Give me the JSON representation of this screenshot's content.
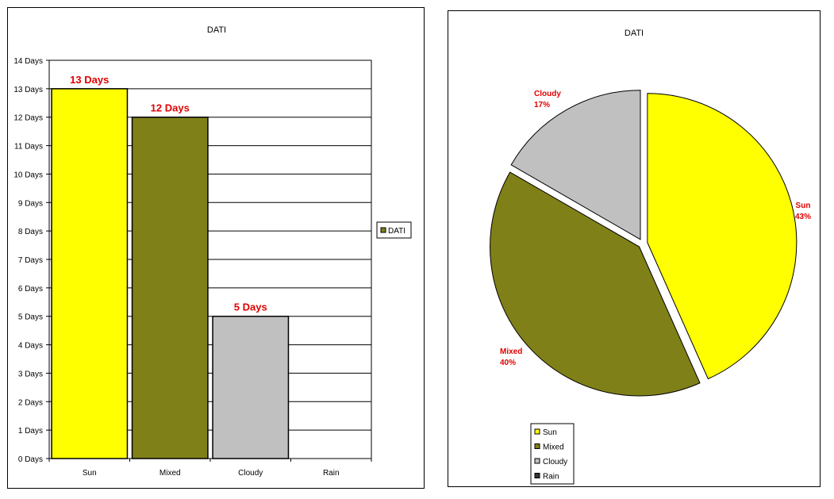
{
  "colors": {
    "Sun": "#ffff00",
    "Mixed": "#808019",
    "Cloudy": "#c0c0c0",
    "Rain": "#333333",
    "label": "#e00000"
  },
  "chart_data": [
    {
      "type": "bar",
      "title": "DATI",
      "categories": [
        "Sun",
        "Mixed",
        "Cloudy",
        "Rain"
      ],
      "series": [
        {
          "name": "DATI",
          "values": [
            13,
            12,
            5,
            0
          ]
        }
      ],
      "data_labels": [
        "13 Days",
        "12 Days",
        "5 Days",
        ""
      ],
      "ylim": [
        0,
        14
      ],
      "y_ticks": [
        "0 Days",
        "1 Days",
        "2 Days",
        "3 Days",
        "4 Days",
        "5 Days",
        "6 Days",
        "7 Days",
        "8 Days",
        "9 Days",
        "10 Days",
        "11 Days",
        "12 Days",
        "13 Days",
        "14 Days"
      ],
      "grid": true,
      "legend": "right"
    },
    {
      "type": "pie",
      "title": "DATI",
      "categories": [
        "Sun",
        "Mixed",
        "Cloudy",
        "Rain"
      ],
      "values": [
        13,
        12,
        5,
        0
      ],
      "labels": [
        {
          "name": "Sun",
          "pct": "43%"
        },
        {
          "name": "Mixed",
          "pct": "40%"
        },
        {
          "name": "Cloudy",
          "pct": "17%"
        }
      ],
      "legend": "bottom-left"
    }
  ]
}
